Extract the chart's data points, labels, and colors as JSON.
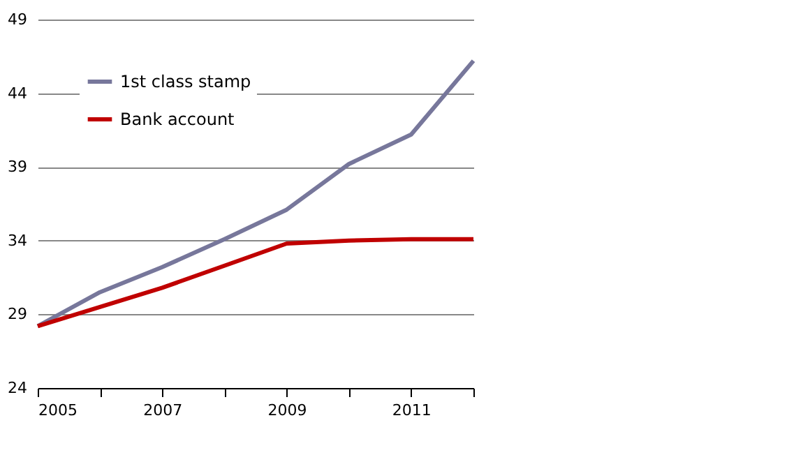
{
  "chart_data": {
    "type": "line",
    "x": [
      2005,
      2006,
      2007,
      2008,
      2009,
      2010,
      2011,
      2012
    ],
    "series": [
      {
        "name": "1st class stamp",
        "color": "#77779b",
        "values": [
          28.2,
          30.5,
          32.2,
          34.1,
          36.1,
          39.2,
          41.2,
          46.2
        ]
      },
      {
        "name": "Bank account",
        "color": "#c00000",
        "values": [
          28.2,
          29.5,
          30.8,
          32.3,
          33.8,
          34.0,
          34.1,
          34.1
        ]
      }
    ],
    "xlim": [
      2005,
      2012
    ],
    "xticks": [
      2005,
      {
        "value": 2006,
        "label": null
      },
      2007,
      {
        "value": 2008,
        "label": null
      },
      2009,
      {
        "value": 2010,
        "label": null
      },
      2011,
      {
        "value": 2012,
        "label": null
      }
    ],
    "ylim": [
      24,
      49
    ],
    "yticks": [
      24,
      29,
      34,
      39,
      44,
      49
    ],
    "grid": "y",
    "legend": "top left",
    "marker": "none",
    "line_style": "solid"
  }
}
